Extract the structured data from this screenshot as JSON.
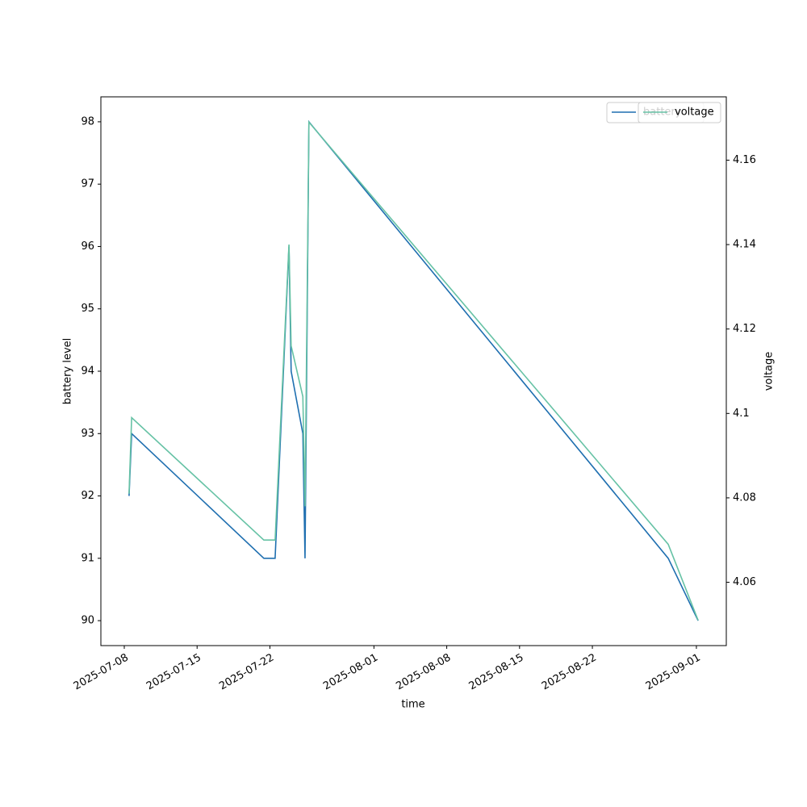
{
  "chart_data": {
    "type": "line",
    "xlabel": "time",
    "ylabel": "battery level",
    "y2label": "voltage",
    "x": [
      "2025-07-08T11:00",
      "2025-07-08T17:00",
      "2025-07-21T10:00",
      "2025-07-22T12:00",
      "2025-07-23T20:00",
      "2025-07-24T01:00",
      "2025-07-25T04:00",
      "2025-07-25T09:00",
      "2025-07-25T18:00",
      "2025-08-29T07:00",
      "2025-09-01T04:00"
    ],
    "series": [
      {
        "name": "battery",
        "color": "#1f6fb0",
        "values": [
          92,
          93,
          91,
          91,
          96,
          94,
          93,
          91,
          98,
          91,
          90
        ]
      },
      {
        "name": "voltage",
        "color": "#66c2a5",
        "axis": "y2",
        "values": [
          4.081,
          4.099,
          4.07,
          4.07,
          4.14,
          4.116,
          4.104,
          4.078,
          4.169,
          4.069,
          4.051
        ]
      }
    ],
    "xlim": [
      "2025-07-05T18:00",
      "2025-09-03T21:00"
    ],
    "xticks": [
      "2025-07-08",
      "2025-07-15",
      "2025-07-22",
      "2025-08-01",
      "2025-08-08",
      "2025-08-15",
      "2025-08-22",
      "2025-09-01"
    ],
    "ylim": [
      89.6,
      98.4
    ],
    "yticks": [
      90,
      91,
      92,
      93,
      94,
      95,
      96,
      97,
      98
    ],
    "y2lim": [
      4.045,
      4.175
    ],
    "y2ticks": [
      4.06,
      4.08,
      4.1,
      4.12,
      4.14,
      4.16
    ],
    "legend": "upper right"
  }
}
